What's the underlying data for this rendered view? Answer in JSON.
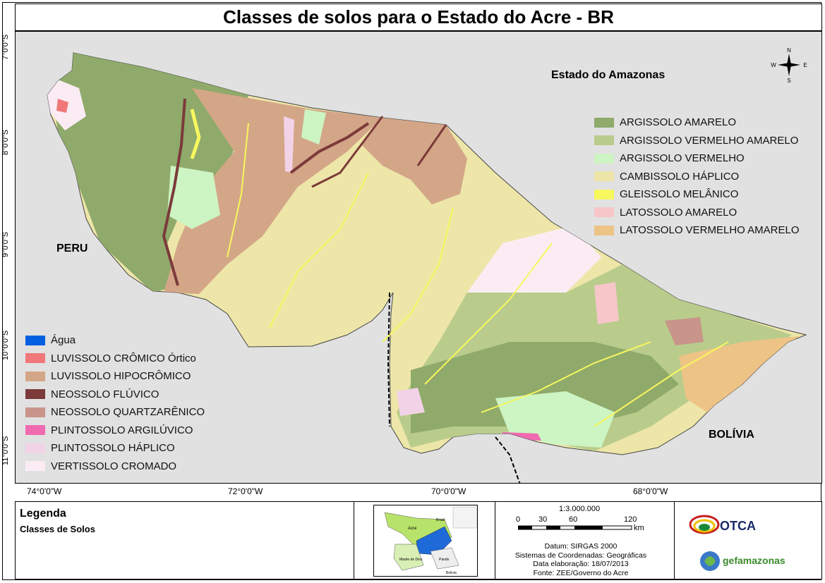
{
  "title": "Classes de solos para o Estado do Acre - BR",
  "regions": {
    "north": "Estado do Amazonas",
    "west": "PERU",
    "south": "BOLÍVIA"
  },
  "axes": {
    "lat_labels": [
      "7°0'0\"S",
      "8°0'0\"S",
      "9°0'0\"S",
      "10°0'0\"S",
      "11°0'0\"S"
    ],
    "lon_labels": [
      "74°0'0\"W",
      "72°0'0\"W",
      "70°0'0\"W",
      "68°0'0\"W"
    ]
  },
  "legend_right": [
    {
      "label": "ARGISSOLO AMARELO",
      "color": "#8faa6a"
    },
    {
      "label": "ARGISSOLO VERMELHO AMARELO",
      "color": "#b9cc8c"
    },
    {
      "label": "ARGISSOLO VERMELHO",
      "color": "#cdf4c3"
    },
    {
      "label": "CAMBISSOLO HÁPLICO",
      "color": "#ede6a8"
    },
    {
      "label": "GLEISSOLO MELÂNICO",
      "color": "#f7f75e"
    },
    {
      "label": "LATOSSOLO AMARELO",
      "color": "#f7c6c8"
    },
    {
      "label": "LATOSSOLO VERMELHO AMARELO",
      "color": "#edc486"
    }
  ],
  "legend_left": [
    {
      "label": "Água",
      "color": "#0060e0"
    },
    {
      "label": "LUVISSOLO CRÔMICO  Órtico",
      "color": "#f07878"
    },
    {
      "label": "LUVISSOLO HIPOCRÔMICO",
      "color": "#d4a688"
    },
    {
      "label": "NEOSSOLO FLÚVICO",
      "color": "#7c3a3a"
    },
    {
      "label": "NEOSSOLO QUARTZARÊNICO",
      "color": "#c9958a"
    },
    {
      "label": "PLINTOSSOLO ARGILÚVICO",
      "color": "#f06ab0"
    },
    {
      "label": "PLINTOSSOLO HÁPLICO",
      "color": "#f2d2e6"
    },
    {
      "label": "VERTISSOLO CROMADO",
      "color": "#fbecf4"
    }
  ],
  "compass": {
    "n": "N",
    "s": "S",
    "e": "E",
    "w": "W"
  },
  "footer": {
    "legend_title": "Legenda",
    "legend_subtitle": "Classes de Solos",
    "inset_labels": {
      "brasil": "Brasil",
      "acre": "Acre",
      "pando": "Pando",
      "madre": "Madre\nde Dios",
      "bolivia": "Bolivia"
    },
    "scale": {
      "ratio": "1:3.000.000",
      "ticks": [
        "0",
        "30",
        "60",
        "120"
      ],
      "unit": "km"
    },
    "meta": [
      "Datum: SIRGAS 2000",
      "Sistemas de Coordenadas: Geográficas",
      "Data elaboração: 18/07/2013",
      "Fonte: ZEE/Governo do Acre"
    ],
    "logo_otca": "OTCA",
    "logo_gef": "gefamazonas"
  }
}
